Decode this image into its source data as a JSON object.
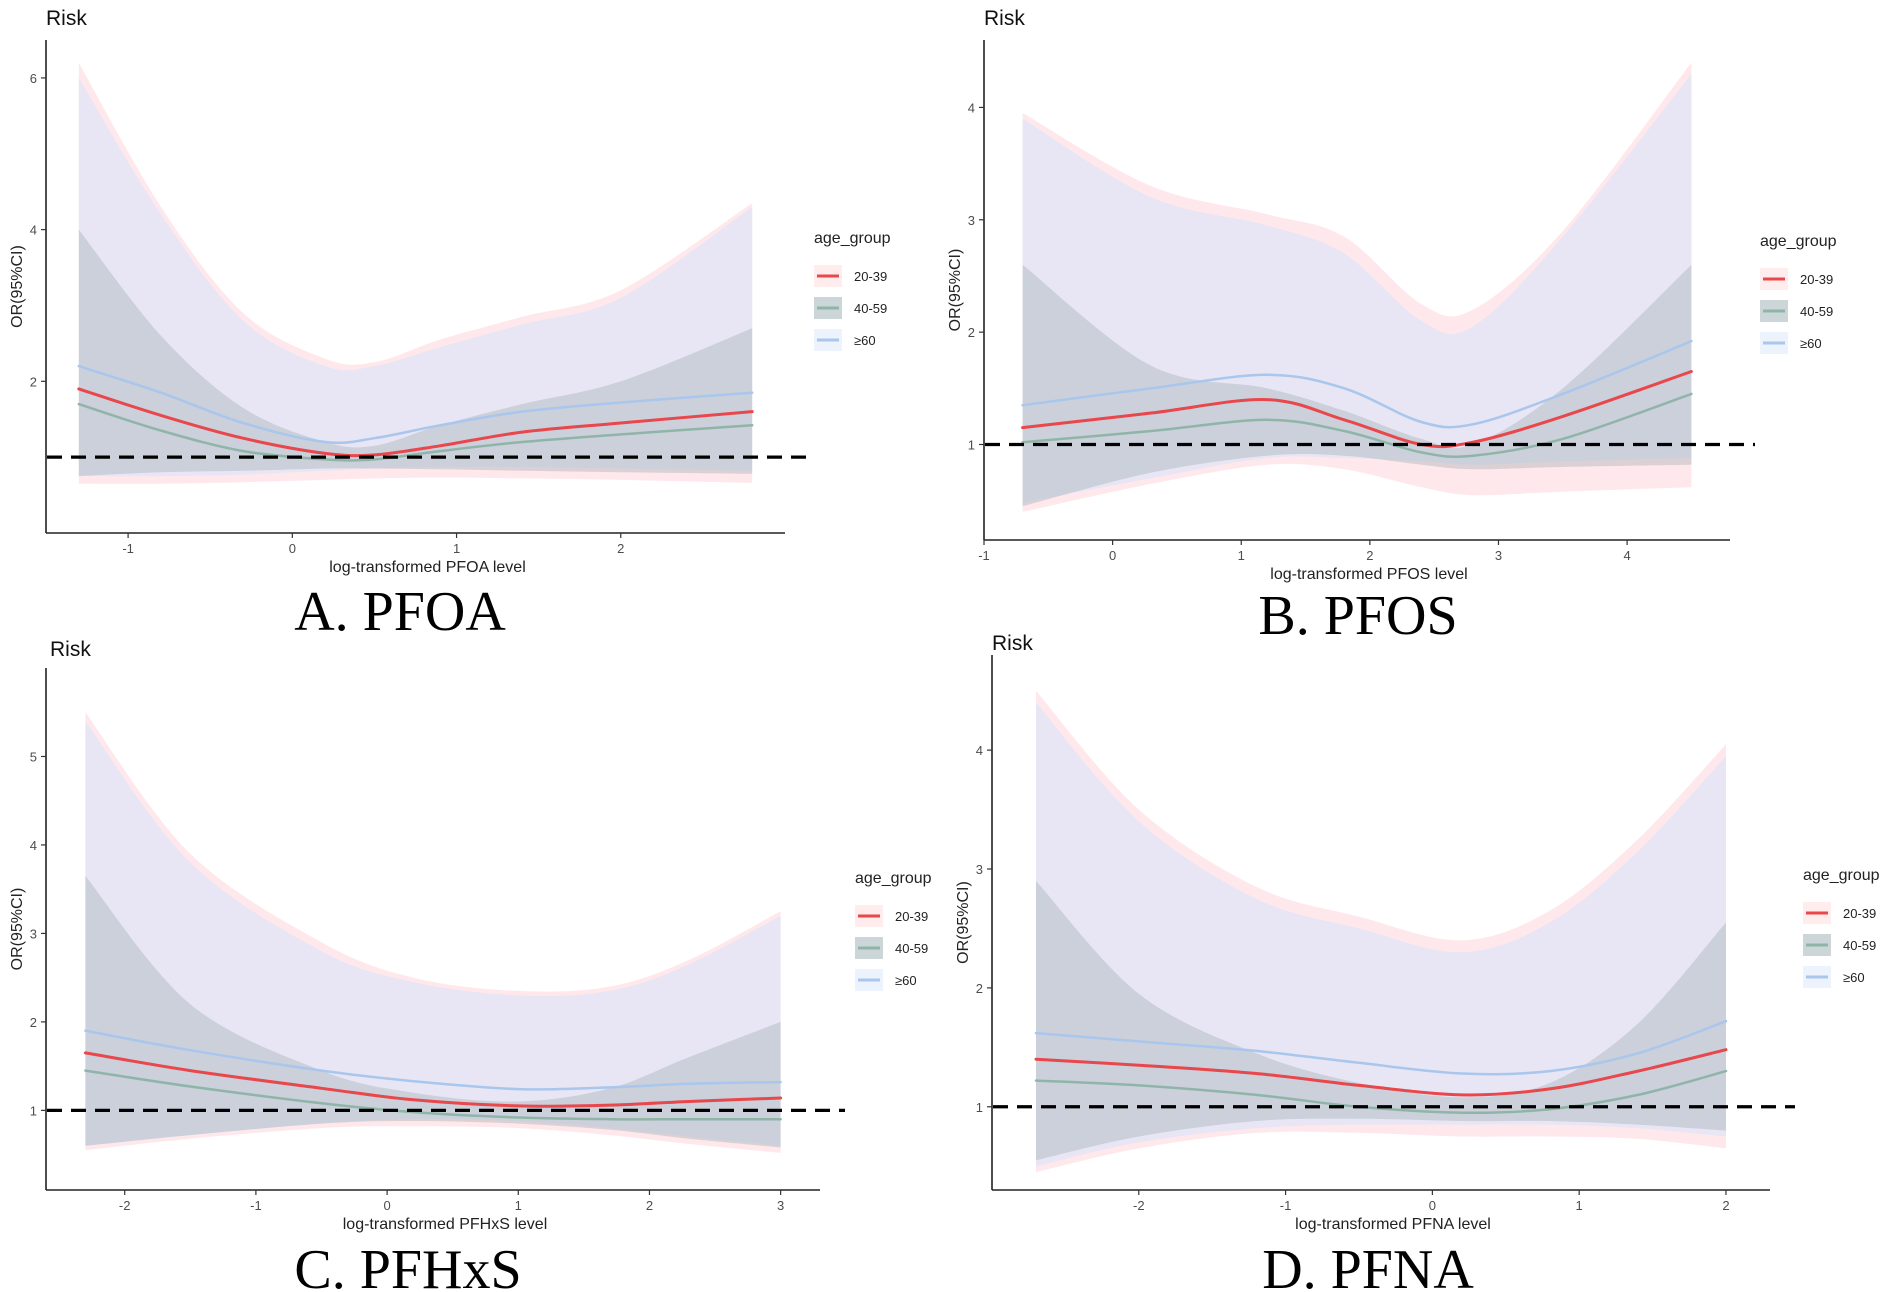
{
  "chart_data": [
    {
      "type": "line",
      "panel_caption": "A. PFOA",
      "title": "Risk",
      "xlabel": "log-transformed PFOA level",
      "ylabel": "OR(95%CI)",
      "xlim": [
        -1.5,
        3.0
      ],
      "ylim": [
        0.0,
        6.5
      ],
      "xticks": [
        -1,
        0,
        1,
        2
      ],
      "yticks": [
        2,
        4,
        6
      ],
      "x_tick_labels": [
        "-1",
        "0",
        "1",
        "2"
      ],
      "y_tick_labels": [
        "2",
        "4",
        "6"
      ],
      "reference_line": 1,
      "legend": {
        "title": "age_group",
        "entries": [
          "20-39",
          "40-59",
          "≥60"
        ]
      },
      "x": [
        -1.3,
        -0.8,
        -0.3,
        0.2,
        0.5,
        0.9,
        1.4,
        2.0,
        2.8
      ],
      "series": [
        {
          "name": "20-39",
          "color": "#e8474c",
          "values": [
            1.9,
            1.55,
            1.25,
            1.05,
            1.03,
            1.15,
            1.33,
            1.45,
            1.6
          ],
          "lower": [
            0.65,
            0.65,
            0.67,
            0.7,
            0.72,
            0.73,
            0.72,
            0.7,
            0.66
          ],
          "upper": [
            6.2,
            4.3,
            2.9,
            2.3,
            2.25,
            2.55,
            2.85,
            3.2,
            4.35
          ]
        },
        {
          "name": "40-59",
          "color": "#8fb5a8",
          "values": [
            1.7,
            1.35,
            1.08,
            0.97,
            0.97,
            1.08,
            1.2,
            1.3,
            1.42
          ],
          "lower": [
            0.75,
            0.8,
            0.82,
            0.85,
            0.85,
            0.84,
            0.82,
            0.8,
            0.78
          ],
          "upper": [
            4.0,
            2.6,
            1.65,
            1.2,
            1.15,
            1.42,
            1.7,
            2.0,
            2.7
          ]
        },
        {
          "name": "≥60",
          "color": "#a9c6ec",
          "values": [
            2.2,
            1.85,
            1.45,
            1.2,
            1.25,
            1.42,
            1.6,
            1.72,
            1.85
          ],
          "lower": [
            0.75,
            0.75,
            0.77,
            0.82,
            0.85,
            0.87,
            0.87,
            0.85,
            0.82
          ],
          "upper": [
            6.0,
            4.2,
            2.8,
            2.2,
            2.2,
            2.45,
            2.75,
            3.1,
            4.3
          ]
        }
      ]
    },
    {
      "type": "line",
      "panel_caption": "B. PFOS",
      "title": "Risk",
      "xlabel": "log-transformed PFOS level",
      "ylabel": "OR(95%CI)",
      "xlim": [
        -1.0,
        4.8
      ],
      "ylim": [
        0.15,
        4.6
      ],
      "xticks": [
        -1,
        0,
        1,
        2,
        3,
        4
      ],
      "yticks": [
        1,
        2,
        3,
        4
      ],
      "x_tick_labels": [
        "-1",
        "0",
        "1",
        "2",
        "3",
        "4"
      ],
      "y_tick_labels": [
        "1",
        "2",
        "3",
        "4"
      ],
      "reference_line": 1,
      "legend": {
        "title": "age_group",
        "entries": [
          "20-39",
          "40-59",
          "≥60"
        ]
      },
      "x": [
        -0.7,
        0.3,
        1.2,
        1.8,
        2.4,
        2.8,
        3.5,
        4.5
      ],
      "series": [
        {
          "name": "20-39",
          "color": "#e8474c",
          "values": [
            1.15,
            1.28,
            1.4,
            1.22,
            1.0,
            1.02,
            1.25,
            1.65
          ],
          "lower": [
            0.4,
            0.65,
            0.82,
            0.78,
            0.62,
            0.55,
            0.58,
            0.62
          ],
          "upper": [
            3.95,
            3.3,
            3.05,
            2.85,
            2.25,
            2.2,
            2.9,
            4.4
          ]
        },
        {
          "name": "40-59",
          "color": "#8fb5a8",
          "values": [
            1.02,
            1.12,
            1.22,
            1.12,
            0.93,
            0.9,
            1.05,
            1.45
          ],
          "lower": [
            0.45,
            0.75,
            0.9,
            0.9,
            0.82,
            0.78,
            0.8,
            0.82
          ],
          "upper": [
            2.6,
            1.7,
            1.5,
            1.3,
            1.05,
            1.0,
            1.5,
            2.6
          ]
        },
        {
          "name": "≥60",
          "color": "#a9c6ec",
          "values": [
            1.35,
            1.5,
            1.62,
            1.5,
            1.2,
            1.18,
            1.45,
            1.92
          ],
          "lower": [
            0.48,
            0.7,
            0.88,
            0.88,
            0.85,
            0.82,
            0.85,
            0.88
          ],
          "upper": [
            3.9,
            3.2,
            2.95,
            2.7,
            2.1,
            2.05,
            2.85,
            4.3
          ]
        }
      ]
    },
    {
      "type": "line",
      "panel_caption": "C. PFHxS",
      "title": "Risk",
      "xlabel": "log-transformed PFHxS level",
      "ylabel": "OR(95%CI)",
      "xlim": [
        -2.6,
        3.3
      ],
      "ylim": [
        0.1,
        6.0
      ],
      "xticks": [
        -2,
        -1,
        0,
        1,
        2,
        3
      ],
      "yticks": [
        1,
        2,
        3,
        4,
        5
      ],
      "x_tick_labels": [
        "-2",
        "-1",
        "0",
        "1",
        "2",
        "3"
      ],
      "y_tick_labels": [
        "1",
        "2",
        "3",
        "4",
        "5"
      ],
      "reference_line": 1,
      "legend": {
        "title": "age_group",
        "entries": [
          "20-39",
          "40-59",
          "≥60"
        ]
      },
      "x": [
        -2.3,
        -1.5,
        -0.5,
        0.2,
        1.0,
        1.7,
        2.3,
        3.0
      ],
      "series": [
        {
          "name": "20-39",
          "color": "#e8474c",
          "values": [
            1.65,
            1.45,
            1.25,
            1.12,
            1.05,
            1.06,
            1.1,
            1.14
          ],
          "lower": [
            0.55,
            0.68,
            0.8,
            0.82,
            0.8,
            0.72,
            0.62,
            0.52
          ],
          "upper": [
            5.5,
            3.9,
            2.9,
            2.5,
            2.35,
            2.4,
            2.7,
            3.25
          ]
        },
        {
          "name": "40-59",
          "color": "#8fb5a8",
          "values": [
            1.45,
            1.27,
            1.08,
            0.98,
            0.92,
            0.9,
            0.9,
            0.9
          ],
          "lower": [
            0.6,
            0.72,
            0.85,
            0.88,
            0.85,
            0.78,
            0.68,
            0.58
          ],
          "upper": [
            3.65,
            2.2,
            1.45,
            1.2,
            1.1,
            1.25,
            1.6,
            2.0
          ]
        },
        {
          "name": "≥60",
          "color": "#a9c6ec",
          "values": [
            1.9,
            1.68,
            1.45,
            1.33,
            1.24,
            1.26,
            1.3,
            1.32
          ],
          "lower": [
            0.6,
            0.72,
            0.85,
            0.9,
            0.88,
            0.8,
            0.7,
            0.6
          ],
          "upper": [
            5.4,
            3.8,
            2.8,
            2.45,
            2.3,
            2.35,
            2.65,
            3.2
          ]
        }
      ]
    },
    {
      "type": "line",
      "panel_caption": "D. PFNA",
      "title": "Risk",
      "xlabel": "log-transformed PFNA level",
      "ylabel": "OR(95%CI)",
      "xlim": [
        -3.0,
        2.3
      ],
      "ylim": [
        0.3,
        4.8
      ],
      "xticks": [
        -2,
        -1,
        0,
        1,
        2
      ],
      "yticks": [
        1,
        2,
        3,
        4
      ],
      "x_tick_labels": [
        "-2",
        "-1",
        "0",
        "1",
        "2"
      ],
      "y_tick_labels": [
        "1",
        "2",
        "3",
        "4"
      ],
      "reference_line": 1,
      "legend": {
        "title": "age_group",
        "entries": [
          "20-39",
          "40-59",
          "≥60"
        ]
      },
      "x": [
        -2.7,
        -2.0,
        -1.2,
        -0.5,
        0.2,
        0.8,
        1.4,
        2.0
      ],
      "series": [
        {
          "name": "20-39",
          "color": "#e8474c",
          "values": [
            1.4,
            1.35,
            1.28,
            1.18,
            1.1,
            1.15,
            1.3,
            1.48
          ],
          "lower": [
            0.45,
            0.65,
            0.78,
            0.78,
            0.75,
            0.75,
            0.73,
            0.65
          ],
          "upper": [
            4.5,
            3.5,
            2.85,
            2.6,
            2.4,
            2.65,
            3.25,
            4.05
          ]
        },
        {
          "name": "40-59",
          "color": "#8fb5a8",
          "values": [
            1.22,
            1.18,
            1.1,
            1.0,
            0.95,
            0.98,
            1.1,
            1.3
          ],
          "lower": [
            0.55,
            0.75,
            0.88,
            0.9,
            0.88,
            0.88,
            0.85,
            0.8
          ],
          "upper": [
            2.9,
            1.95,
            1.45,
            1.2,
            1.08,
            1.2,
            1.7,
            2.55
          ]
        },
        {
          "name": "≥60",
          "color": "#a9c6ec",
          "values": [
            1.62,
            1.55,
            1.47,
            1.37,
            1.28,
            1.3,
            1.45,
            1.72
          ],
          "lower": [
            0.5,
            0.7,
            0.82,
            0.85,
            0.85,
            0.85,
            0.82,
            0.75
          ],
          "upper": [
            4.4,
            3.4,
            2.75,
            2.5,
            2.3,
            2.55,
            3.15,
            3.95
          ]
        }
      ]
    }
  ]
}
